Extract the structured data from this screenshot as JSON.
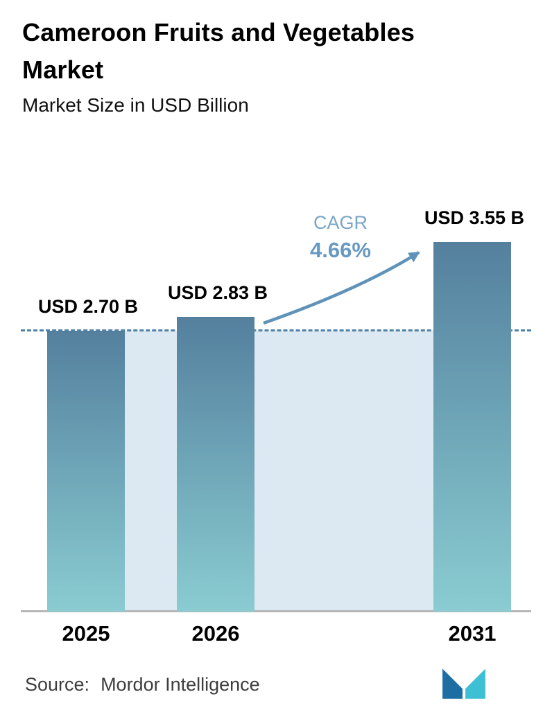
{
  "chart_data": {
    "type": "bar",
    "title": "Cameroon Fruits and Vegetables Market",
    "subtitle": "Market Size in USD Billion",
    "categories": [
      "2025",
      "2026",
      "2031"
    ],
    "values": [
      2.7,
      2.83,
      3.55
    ],
    "value_labels": [
      "USD 2.70 B",
      "USD 2.83 B",
      "USD 3.55 B"
    ],
    "unit": "USD Billion",
    "annotation": {
      "label": "CAGR",
      "value": "4.66%",
      "arrow_from": "2026",
      "arrow_to": "2031"
    },
    "reference_line": {
      "style": "dashed",
      "at_value": 2.7
    },
    "ylim": [
      0,
      4
    ],
    "grid": false,
    "legend": false,
    "xlabel": "",
    "ylabel": "Market Size in USD Billion"
  },
  "source": {
    "label": "Source:",
    "value": "Mordor Intelligence"
  },
  "logo": {
    "name": "mordor-intelligence-logo"
  },
  "colors": {
    "bar_top": "#54809e",
    "bar_bottom": "#8accd1",
    "band": "#dde9f2",
    "dashed_line": "#4e81a8",
    "arrow": "#5e92b8",
    "cagr_text": "#79a6c8",
    "cagr_value_text": "#6699c2",
    "axis_line": "#b6b6b6",
    "text": "#000000",
    "source_text": "#3d3d3d",
    "logo_navy": "#1d6fa3",
    "logo_teal": "#3ec0d4"
  }
}
